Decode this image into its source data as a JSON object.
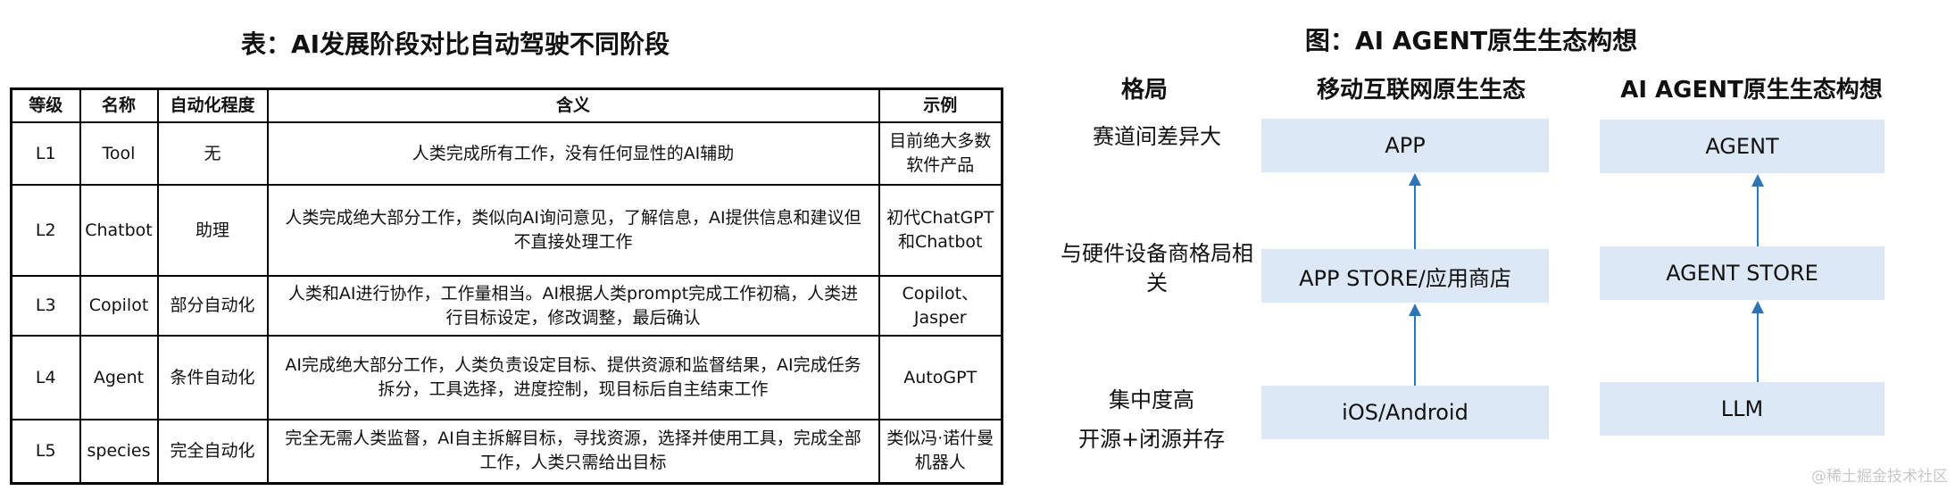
{
  "table_title": "表：AI发展阶段对比自动驾驶不同阶段",
  "table": {
    "headers": [
      "等级",
      "名称",
      "自动化程度",
      "含义",
      "示例"
    ],
    "rows": [
      [
        "L1",
        "Tool",
        "无",
        "人类完成所有工作，没有任何显性的AI辅助",
        "目前绝大多数软件产品"
      ],
      [
        "L2",
        "Chatbot",
        "助理",
        "人类完成绝大部分工作，类似向AI询问意见，了解信息，AI提供信息和建议但不直接处理工作",
        "初代ChatGPT和Chatbot"
      ],
      [
        "L3",
        "Copilot",
        "部分自动化",
        "人类和AI进行协作，工作量相当。AI根据人类prompt完成工作初稿，人类进行目标设定，修改调整，最后确认",
        "Copilot、Jasper"
      ],
      [
        "L4",
        "Agent",
        "条件自动化",
        "AI完成绝大部分工作，人类负责设定目标、提供资源和监督结果，AI完成任务拆分，工具选择，进度控制，现目标后自主结束工作",
        "AutoGPT"
      ],
      [
        "L5",
        "species",
        "完全自动化",
        "完全无需人类监督，AI自主拆解目标，寻找资源，选择并使用工具，完成全部工作，人类只需给出目标",
        "类似冯·诺什曼机器人"
      ]
    ]
  },
  "diagram": {
    "title": "图：AI AGENT原生生态构想",
    "col_headers": [
      "格局",
      "移动互联网原生生态",
      "AI AGENT原生生态构想"
    ],
    "row_labels": [
      "赛道间差异大",
      "与硬件设备商格局相关",
      "集中度高",
      "开源+闭源并存"
    ],
    "mobile_boxes": [
      "APP",
      "APP STORE/应用商店",
      "iOS/Android"
    ],
    "agent_boxes": [
      "AGENT",
      "AGENT STORE",
      "LLM"
    ],
    "box_color": "#dce8f5",
    "arrow_color": "#2e75b6"
  },
  "watermark": "@稀土掘金技术社区"
}
